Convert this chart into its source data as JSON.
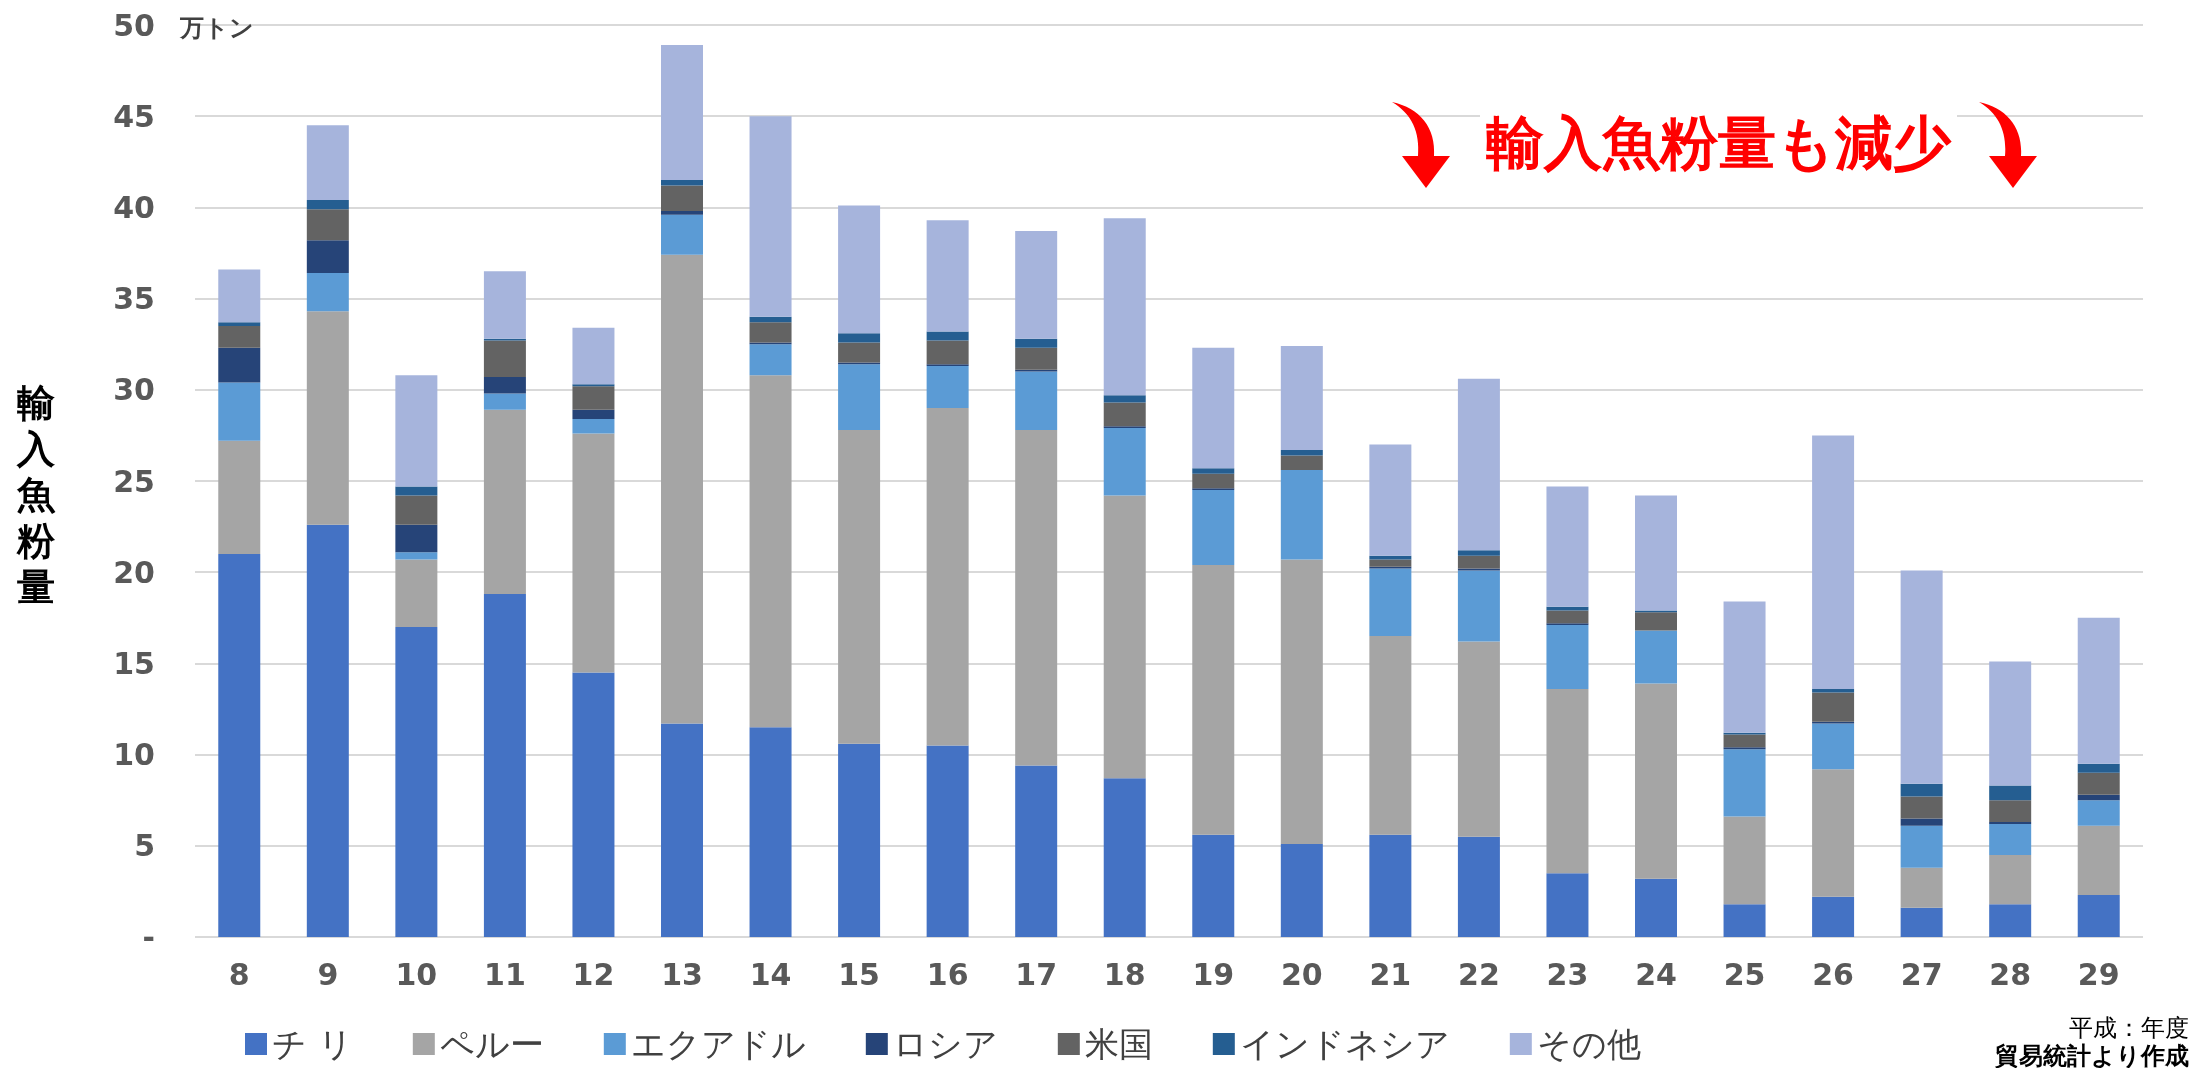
{
  "chart_data": {
    "type": "bar",
    "stacked": true,
    "ylabel": "輸入魚粉量",
    "xlabel": "平成：年度",
    "annotations": [
      "万トン",
      "輸入魚粉量も減少",
      "貿易統計より作成"
    ],
    "categories": [
      "8",
      "9",
      "10",
      "11",
      "12",
      "13",
      "14",
      "15",
      "16",
      "17",
      "18",
      "19",
      "20",
      "21",
      "22",
      "23",
      "24",
      "25",
      "26",
      "27",
      "28",
      "29"
    ],
    "series": [
      {
        "name": "チ リ",
        "color": "#4472c4",
        "values": [
          21.0,
          22.6,
          17.0,
          18.8,
          14.5,
          11.7,
          11.5,
          10.6,
          10.5,
          9.4,
          8.7,
          5.6,
          5.1,
          5.6,
          5.5,
          3.5,
          3.2,
          1.8,
          2.2,
          1.6,
          1.8,
          2.3
        ]
      },
      {
        "name": "ペルー",
        "color": "#a5a5a5",
        "values": [
          6.2,
          11.7,
          3.7,
          10.1,
          13.1,
          25.7,
          19.3,
          17.2,
          18.5,
          18.4,
          15.5,
          14.8,
          15.6,
          10.9,
          10.7,
          10.1,
          10.7,
          4.8,
          7.0,
          2.2,
          2.7,
          3.8
        ]
      },
      {
        "name": "エクアドル",
        "color": "#5b9bd5",
        "values": [
          3.2,
          2.1,
          0.4,
          0.9,
          0.8,
          2.2,
          1.7,
          3.6,
          2.3,
          3.2,
          3.7,
          4.1,
          4.9,
          3.7,
          3.9,
          3.5,
          2.9,
          3.7,
          2.5,
          2.3,
          1.7,
          1.4
        ]
      },
      {
        "name": "ロシア",
        "color": "#264478",
        "values": [
          1.9,
          1.8,
          1.5,
          0.9,
          0.5,
          0.2,
          0.1,
          0.1,
          0.1,
          0.1,
          0.1,
          0.1,
          0.0,
          0.1,
          0.1,
          0.1,
          0.0,
          0.1,
          0.1,
          0.4,
          0.1,
          0.3
        ]
      },
      {
        "name": "米国",
        "color": "#636363",
        "values": [
          1.2,
          1.7,
          1.6,
          2.0,
          1.3,
          1.4,
          1.1,
          1.1,
          1.3,
          1.2,
          1.3,
          0.8,
          0.8,
          0.4,
          0.7,
          0.7,
          1.0,
          0.7,
          1.6,
          1.2,
          1.2,
          1.2
        ]
      },
      {
        "name": "インドネシア",
        "color": "#255e91",
        "values": [
          0.2,
          0.5,
          0.5,
          0.1,
          0.1,
          0.3,
          0.3,
          0.5,
          0.5,
          0.5,
          0.4,
          0.3,
          0.3,
          0.2,
          0.3,
          0.2,
          0.1,
          0.1,
          0.2,
          0.7,
          0.8,
          0.5
        ]
      },
      {
        "name": "その他",
        "color": "#a6b4dc",
        "values": [
          2.9,
          4.1,
          6.1,
          3.7,
          3.1,
          7.4,
          11.0,
          7.0,
          6.1,
          5.9,
          9.7,
          6.6,
          5.7,
          6.1,
          9.4,
          6.6,
          6.3,
          7.2,
          13.9,
          11.7,
          6.8,
          8.0
        ]
      }
    ],
    "ylim": [
      0,
      50
    ],
    "yticks": [
      {
        "value": 0,
        "label": "-"
      },
      5,
      10,
      15,
      20,
      25,
      30,
      35,
      40,
      45,
      50
    ],
    "grid": "y",
    "legend": "bottom"
  }
}
